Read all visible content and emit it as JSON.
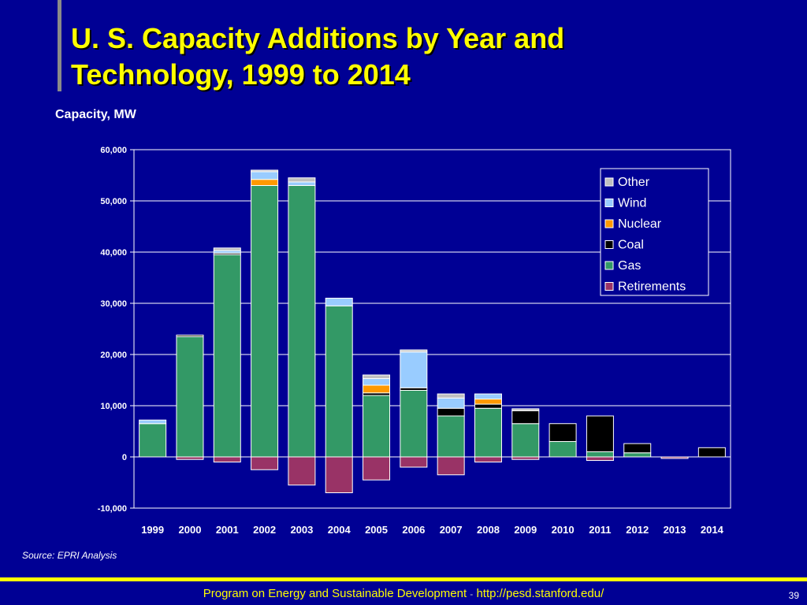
{
  "slide": {
    "title_line1": "U. S. Capacity Additions by Year and",
    "title_line2": "Technology, 1999 to 2014",
    "y_caption": "Capacity, MW",
    "source": "Source: EPRI Analysis",
    "footer_text": "Program on Energy and Sustainable Development",
    "footer_sep": "-",
    "footer_url": "http://pesd.stanford.edu/",
    "page_number": "39"
  },
  "colors": {
    "background": "#000094",
    "title": "#ffff00",
    "footer_rule": "#ffff00"
  },
  "chart_data": {
    "type": "bar",
    "stacked": true,
    "categories": [
      "1999",
      "2000",
      "2001",
      "2002",
      "2003",
      "2004",
      "2005",
      "2006",
      "2007",
      "2008",
      "2009",
      "2010",
      "2011",
      "2012",
      "2013",
      "2014"
    ],
    "ylim": [
      -10000,
      60000
    ],
    "yticks": [
      -10000,
      0,
      10000,
      20000,
      30000,
      40000,
      50000,
      60000
    ],
    "ytick_labels": [
      "-10,000",
      "0",
      "10,000",
      "20,000",
      "30,000",
      "40,000",
      "50,000",
      "60,000"
    ],
    "grid": true,
    "legend_position": "top-right",
    "series": [
      {
        "name": "Retirements",
        "color": "#993366",
        "values": [
          0,
          -500,
          -1000,
          -2500,
          -5500,
          -7000,
          -4500,
          -2000,
          -3500,
          -1000,
          -500,
          0,
          -700,
          0,
          -300,
          0
        ]
      },
      {
        "name": "Gas",
        "color": "#339966",
        "values": [
          6500,
          23500,
          39500,
          53000,
          53000,
          29500,
          12000,
          13000,
          8000,
          9500,
          6500,
          3000,
          1000,
          800,
          0,
          0
        ]
      },
      {
        "name": "Coal",
        "color": "#000000",
        "values": [
          0,
          300,
          300,
          0,
          0,
          0,
          500,
          500,
          1500,
          800,
          2500,
          3500,
          7000,
          1800,
          0,
          1800
        ]
      },
      {
        "name": "Nuclear",
        "color": "#ff9900",
        "values": [
          0,
          0,
          0,
          1200,
          0,
          0,
          1500,
          0,
          0,
          1000,
          0,
          0,
          0,
          0,
          0,
          0
        ]
      },
      {
        "name": "Wind",
        "color": "#99ccff",
        "values": [
          700,
          0,
          500,
          1500,
          700,
          1500,
          1300,
          7000,
          2000,
          1000,
          0,
          0,
          0,
          0,
          0,
          0
        ]
      },
      {
        "name": "Other",
        "color": "#c0c0c0",
        "values": [
          0,
          0,
          500,
          300,
          800,
          0,
          700,
          400,
          800,
          0,
          400,
          0,
          0,
          0,
          0,
          0
        ]
      }
    ],
    "legend_order": [
      "Other",
      "Wind",
      "Nuclear",
      "Coal",
      "Gas",
      "Retirements"
    ]
  }
}
